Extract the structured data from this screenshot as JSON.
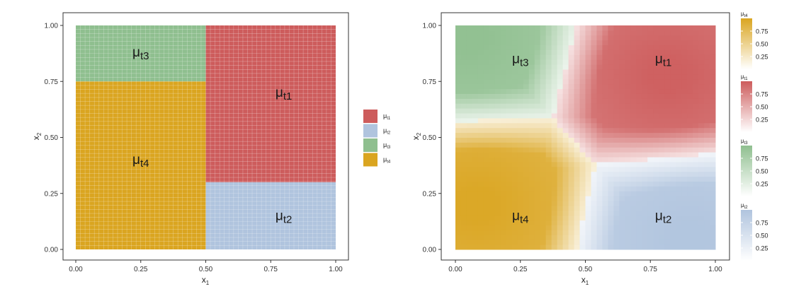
{
  "chart_data": [
    {
      "type": "heatmap",
      "title": "",
      "xlabel": "x",
      "xlabel_sub": "1",
      "ylabel": "x",
      "ylabel_sub": "2",
      "xlim": [
        0,
        1
      ],
      "ylim": [
        0,
        1
      ],
      "x_ticks": [
        0,
        0.25,
        0.5,
        0.75,
        1
      ],
      "x_tick_labels": [
        "0.00",
        "0.25",
        "0.50",
        "0.75",
        "1.00"
      ],
      "y_ticks": [
        0,
        0.25,
        0.5,
        0.75,
        1
      ],
      "y_tick_labels": [
        "0.00",
        "0.25",
        "0.50",
        "0.75",
        "1.00"
      ],
      "grid": true,
      "regions": [
        {
          "name": "μt4",
          "xmin": 0,
          "xmax": 0.5,
          "ymin": 0,
          "ymax": 0.75,
          "color": "#DAA520"
        },
        {
          "name": "μt3",
          "xmin": 0,
          "xmax": 0.5,
          "ymin": 0.75,
          "ymax": 1,
          "color": "#8FBF8F"
        },
        {
          "name": "μt1",
          "xmin": 0.5,
          "xmax": 1,
          "ymin": 0.3,
          "ymax": 1,
          "color": "#CD5C5C"
        },
        {
          "name": "μt2",
          "xmin": 0.5,
          "xmax": 1,
          "ymin": 0,
          "ymax": 0.3,
          "color": "#B0C4DE"
        }
      ],
      "annotations": [
        {
          "base": "μ",
          "sub": "t3",
          "x": 0.25,
          "y": 0.88
        },
        {
          "base": "μ",
          "sub": "t1",
          "x": 0.8,
          "y": 0.7
        },
        {
          "base": "μ",
          "sub": "t4",
          "x": 0.25,
          "y": 0.4
        },
        {
          "base": "μ",
          "sub": "t2",
          "x": 0.8,
          "y": 0.15
        }
      ],
      "legend": {
        "placement": "right",
        "entries": [
          {
            "base": "μ",
            "sub": "t1",
            "color": "#CD5C5C"
          },
          {
            "base": "μ",
            "sub": "t2",
            "color": "#B0C4DE"
          },
          {
            "base": "μ",
            "sub": "t3",
            "color": "#8FBF8F"
          },
          {
            "base": "μ",
            "sub": "t4",
            "color": "#DAA520"
          }
        ]
      }
    },
    {
      "type": "heatmap",
      "title": "",
      "xlabel": "x",
      "xlabel_sub": "1",
      "ylabel": "x",
      "ylabel_sub": "2",
      "xlim": [
        0,
        1
      ],
      "ylim": [
        0,
        1
      ],
      "x_ticks": [
        0,
        0.25,
        0.5,
        0.75,
        1
      ],
      "x_tick_labels": [
        "0.00",
        "0.25",
        "0.50",
        "0.75",
        "1.00"
      ],
      "y_ticks": [
        0,
        0.25,
        0.5,
        0.75,
        1
      ],
      "y_tick_labels": [
        "0.00",
        "0.25",
        "0.50",
        "0.75",
        "1.00"
      ],
      "grid": false,
      "color_anchors": [
        {
          "sub": "t1",
          "x": 0.82,
          "y": 0.78,
          "color": "#CD5C5C"
        },
        {
          "sub": "t2",
          "x": 0.9,
          "y": 0.05,
          "color": "#B0C4DE"
        },
        {
          "sub": "t3",
          "x": 0.05,
          "y": 0.95,
          "color": "#8FBF8F"
        },
        {
          "sub": "t4",
          "x": 0.08,
          "y": 0.2,
          "color": "#DAA520"
        }
      ],
      "annotations": [
        {
          "base": "μ",
          "sub": "t3",
          "x": 0.25,
          "y": 0.85
        },
        {
          "base": "μ",
          "sub": "t1",
          "x": 0.8,
          "y": 0.85
        },
        {
          "base": "μ",
          "sub": "t4",
          "x": 0.25,
          "y": 0.15
        },
        {
          "base": "μ",
          "sub": "t2",
          "x": 0.8,
          "y": 0.15
        }
      ],
      "colorbars": [
        {
          "base": "μ",
          "sub": "t4",
          "color": "#DAA520",
          "ticks": [
            0.25,
            0.5,
            0.75
          ],
          "tick_labels": [
            "0.25",
            "0.50",
            "0.75"
          ]
        },
        {
          "base": "μ",
          "sub": "t1",
          "color": "#CD5C5C",
          "ticks": [
            0.25,
            0.5,
            0.75
          ],
          "tick_labels": [
            "0.25",
            "0.50",
            "0.75"
          ]
        },
        {
          "base": "μ",
          "sub": "t3",
          "color": "#8FBF8F",
          "ticks": [
            0.25,
            0.5,
            0.75
          ],
          "tick_labels": [
            "0.25",
            "0.50",
            "0.75"
          ]
        },
        {
          "base": "μ",
          "sub": "t2",
          "color": "#B0C4DE",
          "ticks": [
            0.25,
            0.5,
            0.75
          ],
          "tick_labels": [
            "0.25",
            "0.50",
            "0.75"
          ]
        }
      ]
    }
  ]
}
